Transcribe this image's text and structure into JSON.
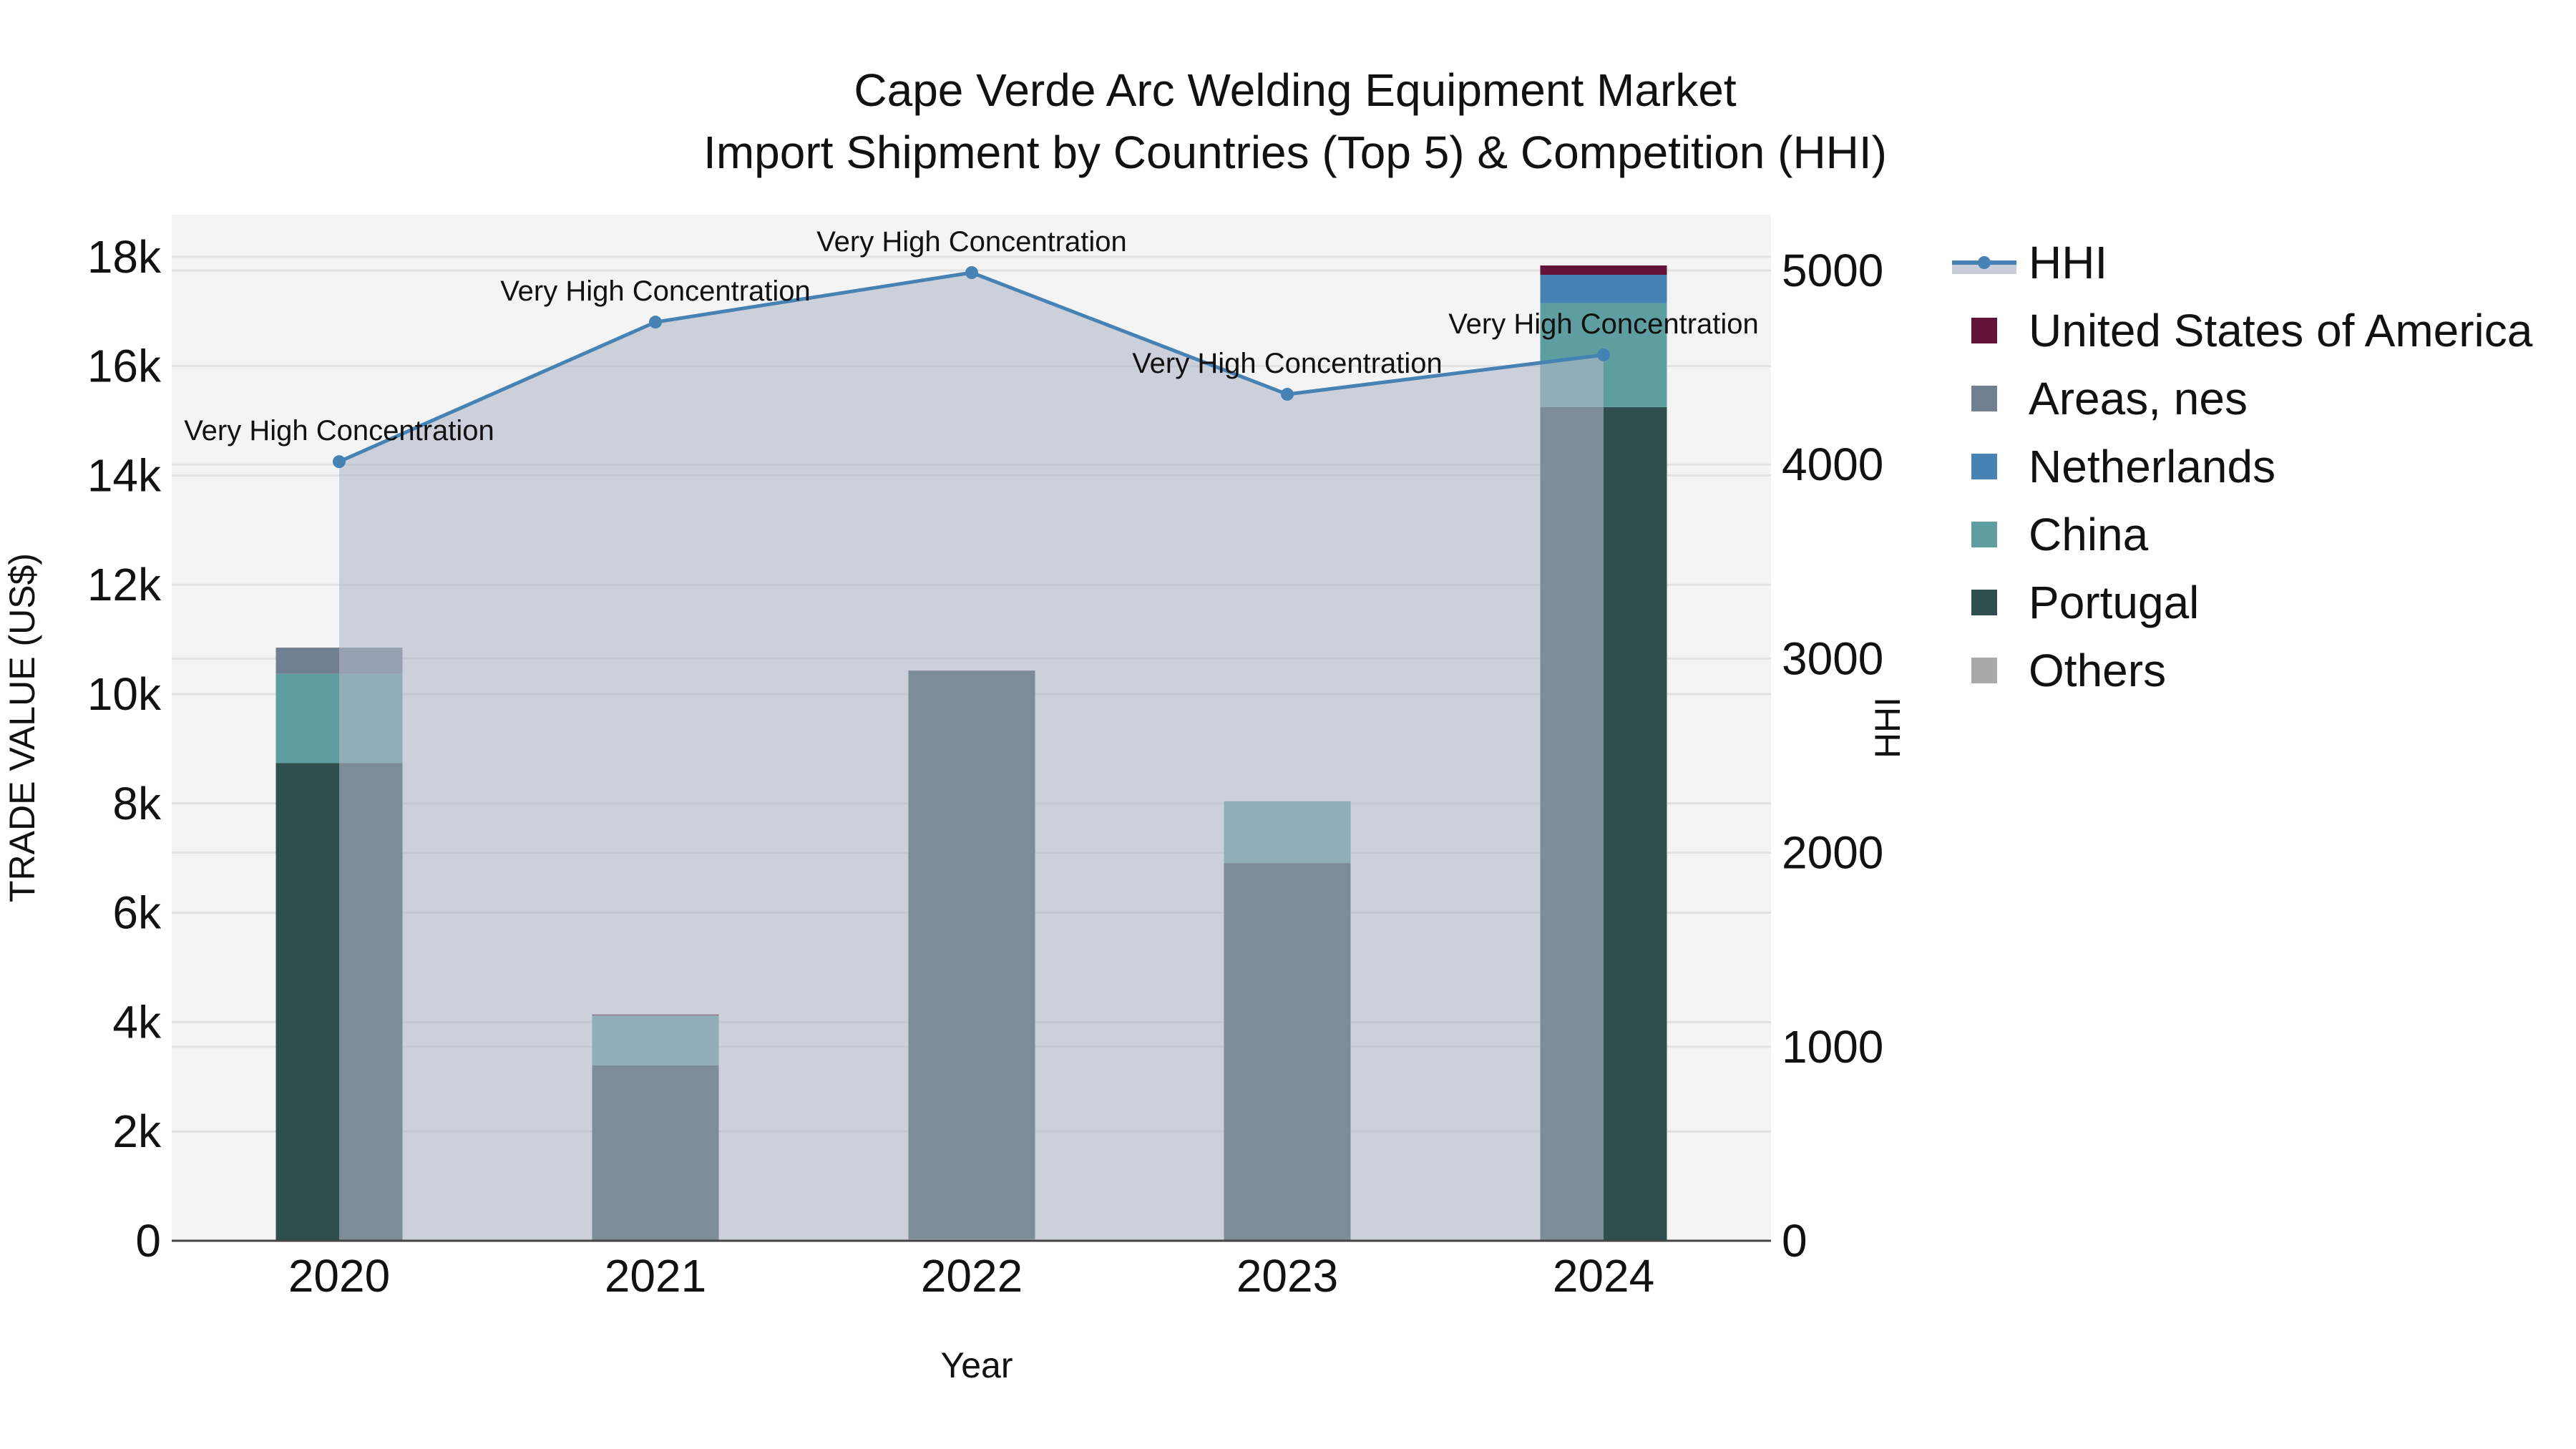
{
  "title": {
    "line1": "Cape Verde Arc Welding Equipment Market",
    "line2": "Import Shipment by Countries (Top 5) & Competition (HHI)"
  },
  "axes": {
    "x_title": "Year",
    "y_left_title": "TRADE VALUE (US$)",
    "y_right_title": "HHI",
    "y_left_ticks": [
      "0",
      "2k",
      "4k",
      "6k",
      "8k",
      "10k",
      "12k",
      "14k",
      "16k",
      "18k"
    ],
    "y_right_ticks": [
      "0",
      "1000",
      "2000",
      "3000",
      "4000",
      "5000"
    ]
  },
  "legend": {
    "items": [
      {
        "label": "HHI",
        "color": "#4682B4",
        "type": "line"
      },
      {
        "label": "United States of America",
        "color": "#641338",
        "type": "box"
      },
      {
        "label": "Areas, nes",
        "color": "#708090",
        "type": "box"
      },
      {
        "label": "Netherlands",
        "color": "#4682B4",
        "type": "box"
      },
      {
        "label": "China",
        "color": "#5F9EA0",
        "type": "box"
      },
      {
        "label": "Portugal",
        "color": "#2F4F4F",
        "type": "box"
      },
      {
        "label": "Others",
        "color": "#A9A9A9",
        "type": "box"
      }
    ]
  },
  "colors": {
    "plot_bg": "#F4F4F4",
    "grid": "#E2E2E2",
    "hhi_line": "#4682B4",
    "hhi_fill": "#B0B8C8"
  },
  "chart_data": {
    "type": "bar",
    "title": "Cape Verde Arc Welding Equipment Market — Import Shipment by Countries (Top 5) & Competition (HHI)",
    "xlabel": "Year",
    "ylabel": "TRADE VALUE (US$)",
    "y2label": "HHI",
    "ylim": [
      0,
      18800
    ],
    "y2lim": [
      0,
      5280
    ],
    "stacked": true,
    "categories": [
      "2020",
      "2021",
      "2022",
      "2023",
      "2024"
    ],
    "series": [
      {
        "name": "Others",
        "color": "#A9A9A9",
        "values": [
          0,
          0,
          30,
          0,
          0
        ]
      },
      {
        "name": "Portugal",
        "color": "#2F4F4F",
        "values": [
          8740,
          3210,
          10400,
          6910,
          15250
        ]
      },
      {
        "name": "China",
        "color": "#5F9EA0",
        "values": [
          1630,
          910,
          0,
          1130,
          1900
        ]
      },
      {
        "name": "Netherlands",
        "color": "#4682B4",
        "values": [
          0,
          0,
          0,
          0,
          520
        ]
      },
      {
        "name": "Areas, nes",
        "color": "#708090",
        "values": [
          480,
          0,
          0,
          0,
          0
        ]
      },
      {
        "name": "United States of America",
        "color": "#641338",
        "values": [
          0,
          20,
          0,
          0,
          170
        ]
      }
    ],
    "line_series": {
      "name": "HHI",
      "axis": "right",
      "color": "#4682B4",
      "fill": "tozeroy",
      "values": [
        4015,
        4734,
        4989,
        4362,
        4565
      ],
      "annotations": [
        "Very High Concentration",
        "Very High Concentration",
        "Very High Concentration",
        "Very High Concentration",
        "Very High Concentration"
      ]
    },
    "legend_position": "right",
    "grid": true
  }
}
